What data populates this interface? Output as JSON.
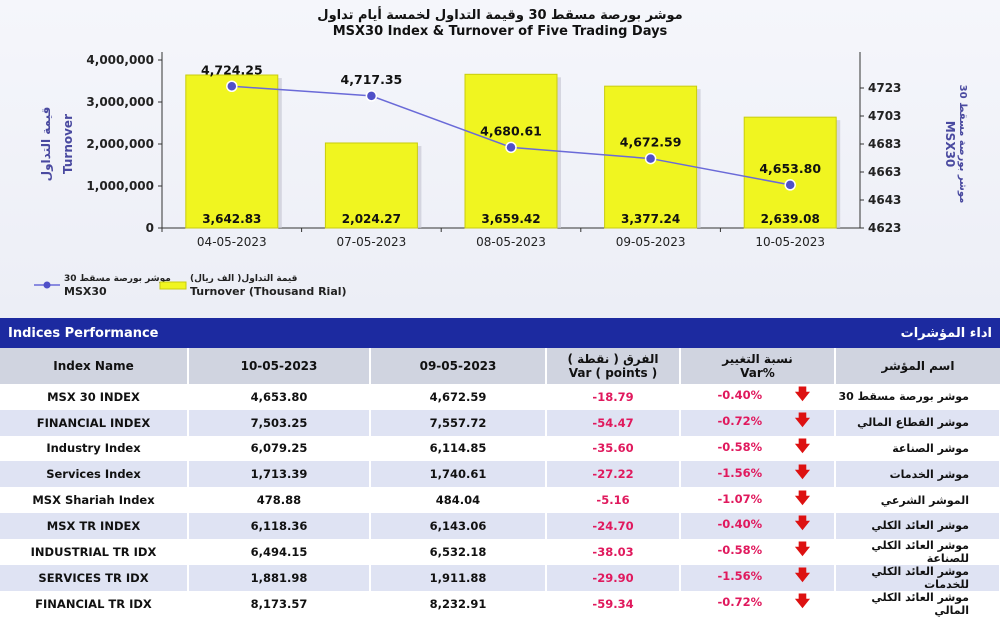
{
  "chart_data": {
    "type": "bar",
    "title_ar": "موشر بورصة مسقط 30 وقيمة التداول لخمسة أيام تداول",
    "title": "MSX30 Index & Turnover of Five Trading Days",
    "categories": [
      "04-05-2023",
      "07-05-2023",
      "08-05-2023",
      "09-05-2023",
      "10-05-2023"
    ],
    "series": [
      {
        "name": "Turnover (Thousand Rial)",
        "name_ar": "قيمة التداول( الف ريال)",
        "axis": "left",
        "values": [
          3642.83,
          2024.27,
          3659.42,
          3377.24,
          2639.08
        ],
        "labels": [
          "3,642.83",
          "2,024.27",
          "3,659.42",
          "3,377.24",
          "2,639.08"
        ]
      },
      {
        "name": "MSX30",
        "name_ar": "موشر بورصة مسقط 30",
        "axis": "right",
        "type": "line",
        "values": [
          4724.25,
          4717.35,
          4680.61,
          4672.59,
          4653.8
        ],
        "labels": [
          "4,724.25",
          "4,717.35",
          "4,680.61",
          "4,672.59",
          "4,653.80"
        ]
      }
    ],
    "ylim_left": [
      0,
      4000
    ],
    "yticks_left": [
      "0",
      "1,000,000",
      "2,000,000",
      "3,000,000",
      "4,000,000"
    ],
    "ylabel_left": "Turnover",
    "ylabel_left_ar": "قيمة التداول",
    "ylim_right": [
      4623,
      4743
    ],
    "yticks_right": [
      "4623",
      "4643",
      "4663",
      "4683",
      "4703",
      "4723"
    ],
    "ylabel_right": "MSX30",
    "ylabel_right_ar": "موشر بورصة مسقط 30",
    "colors": {
      "bar": "#f0f520",
      "line": "#6a6ad8",
      "marker": "#5050c8"
    }
  },
  "performance": {
    "title": "Indices Performance",
    "title_ar": "اداء المؤشرات",
    "headers": {
      "index_name": "Index Name",
      "date1": "10-05-2023",
      "date2": "09-05-2023",
      "var_ar": "الفرق ( نقطة )",
      "var": "Var ( points )",
      "varpct_ar": "نسبة التغيير",
      "varpct": "Var%",
      "name_ar": "اسم المؤشر"
    },
    "rows": [
      {
        "name": "MSX 30 INDEX",
        "d1": "4,653.80",
        "d2": "4,672.59",
        "var": "-18.79",
        "pct": "-0.40%",
        "name_ar": "موشر بورصة مسقط 30"
      },
      {
        "name": "FINANCIAL INDEX",
        "d1": "7,503.25",
        "d2": "7,557.72",
        "var": "-54.47",
        "pct": "-0.72%",
        "name_ar": "موشر القطاع المالي"
      },
      {
        "name": "Industry Index",
        "d1": "6,079.25",
        "d2": "6,114.85",
        "var": "-35.60",
        "pct": "-0.58%",
        "name_ar": "موشر الصناعة"
      },
      {
        "name": "Services Index",
        "d1": "1,713.39",
        "d2": "1,740.61",
        "var": "-27.22",
        "pct": "-1.56%",
        "name_ar": "موشر الخدمات"
      },
      {
        "name": "MSX Shariah Index",
        "d1": "478.88",
        "d2": "484.04",
        "var": "-5.16",
        "pct": "-1.07%",
        "name_ar": "الموشر الشرعي"
      },
      {
        "name": "MSX TR INDEX",
        "d1": "6,118.36",
        "d2": "6,143.06",
        "var": "-24.70",
        "pct": "-0.40%",
        "name_ar": "موشر العائد الكلي"
      },
      {
        "name": "INDUSTRIAL TR IDX",
        "d1": "6,494.15",
        "d2": "6,532.18",
        "var": "-38.03",
        "pct": "-0.58%",
        "name_ar": "موشر العائد الكلي للصناعة"
      },
      {
        "name": "SERVICES TR IDX",
        "d1": "1,881.98",
        "d2": "1,911.88",
        "var": "-29.90",
        "pct": "-1.56%",
        "name_ar": "موشر العائد الكلي للخدمات"
      },
      {
        "name": "FINANCIAL TR IDX",
        "d1": "8,173.57",
        "d2": "8,232.91",
        "var": "-59.34",
        "pct": "-0.72%",
        "name_ar": "موشر العائد الكلي المالي"
      }
    ],
    "arrow_icon": "down-arrow-icon"
  }
}
